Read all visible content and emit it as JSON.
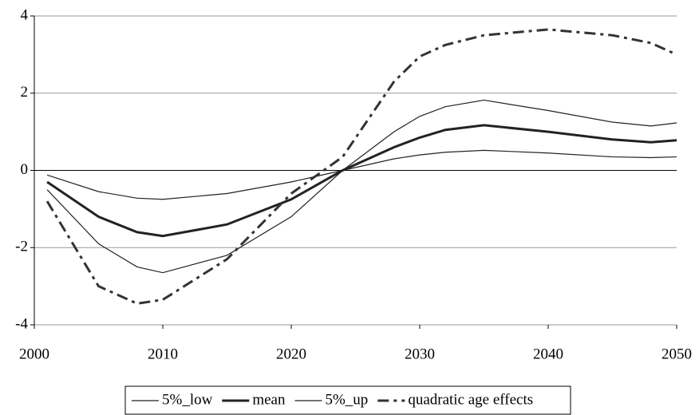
{
  "chart_data": {
    "type": "line",
    "x": [
      2001,
      2005,
      2008,
      2010,
      2015,
      2020,
      2024,
      2028,
      2030,
      2032,
      2035,
      2040,
      2045,
      2048,
      2050
    ],
    "series": [
      {
        "name": "5%_low",
        "color": "#222222",
        "width": 1.2,
        "dash": "none",
        "values": [
          -0.12,
          -0.55,
          -0.72,
          -0.75,
          -0.6,
          -0.3,
          0,
          0.3,
          0.4,
          0.47,
          0.52,
          0.45,
          0.35,
          0.33,
          0.35
        ]
      },
      {
        "name": "mean",
        "color": "#222222",
        "width": 3,
        "dash": "none",
        "values": [
          -0.3,
          -1.2,
          -1.6,
          -1.7,
          -1.4,
          -0.75,
          0,
          0.6,
          0.85,
          1.05,
          1.17,
          1.0,
          0.8,
          0.73,
          0.78
        ]
      },
      {
        "name": "5%_up",
        "color": "#222222",
        "width": 1.2,
        "dash": "none",
        "values": [
          -0.5,
          -1.9,
          -2.5,
          -2.65,
          -2.2,
          -1.2,
          0,
          1.0,
          1.4,
          1.65,
          1.82,
          1.55,
          1.25,
          1.15,
          1.23
        ]
      },
      {
        "name": "quadratic age effects",
        "color": "#333333",
        "width": 3,
        "dash": "14 6 4 6",
        "values": [
          -0.8,
          -3.0,
          -3.45,
          -3.35,
          -2.3,
          -0.6,
          0.35,
          2.3,
          2.95,
          3.25,
          3.5,
          3.65,
          3.5,
          3.3,
          3.0
        ]
      }
    ],
    "xlim": [
      2000,
      2050
    ],
    "xticks": [
      2000,
      2010,
      2020,
      2030,
      2040,
      2050
    ],
    "ylim": [
      -4,
      4
    ],
    "yticks": [
      -4,
      -2,
      0,
      2,
      4
    ],
    "grid": true,
    "legend": "bottom"
  }
}
